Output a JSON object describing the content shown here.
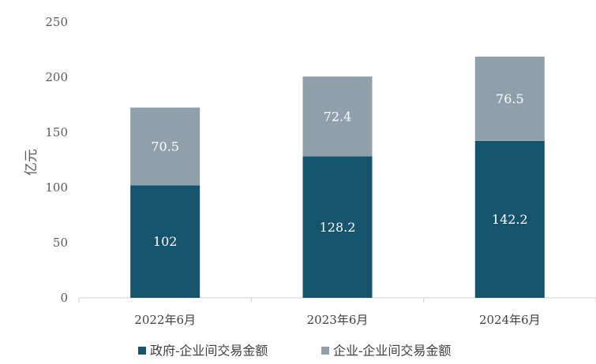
{
  "chart_data": {
    "type": "bar",
    "stacked": true,
    "categories": [
      "2022年6月",
      "2023年6月",
      "2024年6月"
    ],
    "series": [
      {
        "name": "政府-企业间交易金额",
        "values": [
          102,
          128.2,
          142.2
        ],
        "labels": [
          "102",
          "128.2",
          "142.2"
        ],
        "color": "#16546e"
      },
      {
        "name": "企业-企业间交易金额",
        "values": [
          70.5,
          72.4,
          76.5
        ],
        "labels": [
          "70.5",
          "72.4",
          "76.5"
        ],
        "color": "#8fa0ab"
      }
    ],
    "ylabel": "亿元",
    "xlabel": "",
    "ylim": [
      0,
      250
    ],
    "yticks": [
      0,
      50,
      100,
      150,
      200,
      250
    ],
    "grid": false,
    "legend_position": "bottom"
  }
}
